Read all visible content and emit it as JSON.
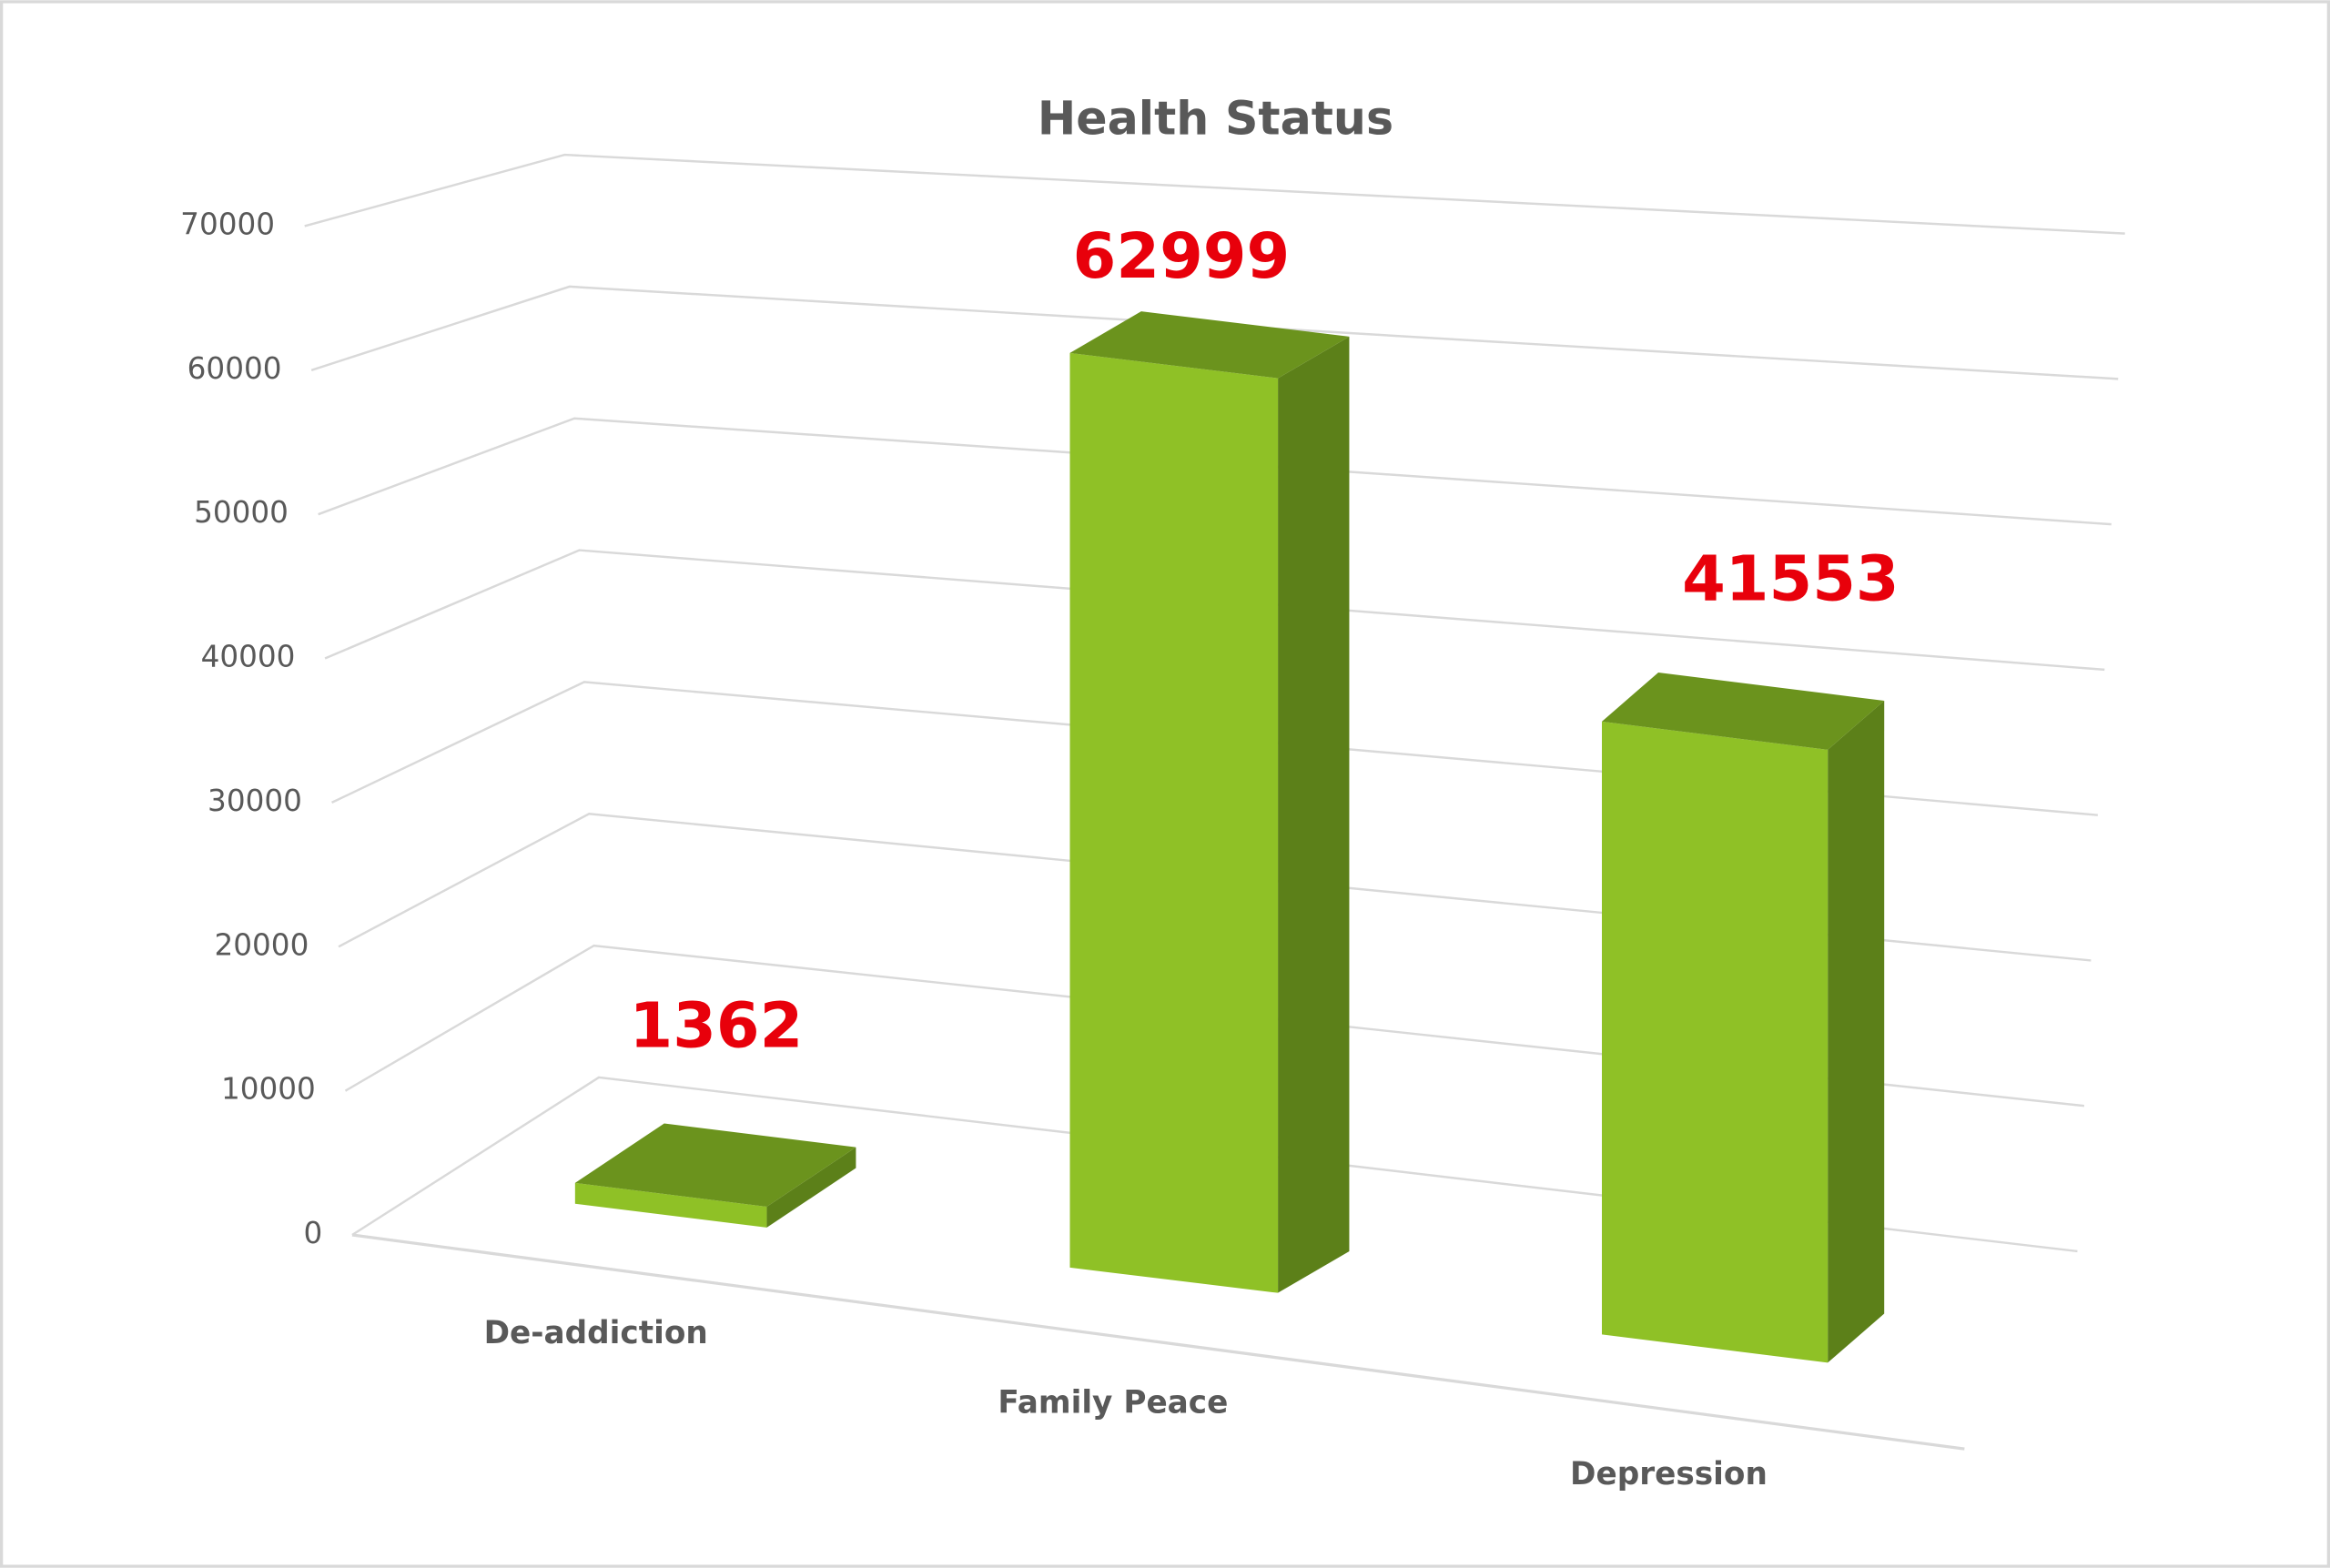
{
  "chart_data": {
    "type": "bar3d",
    "title": "Health Status",
    "categories": [
      "De-addiction",
      "Family Peace",
      "Depression"
    ],
    "values": [
      1362,
      62999,
      41553
    ],
    "color": "#8fc126",
    "top_color": "#6b931d",
    "side_color": "#5c8019",
    "label_color": "#e8000b",
    "ylim": [
      0,
      70000
    ],
    "yticks": [
      0,
      10000,
      20000,
      30000,
      40000,
      50000,
      60000,
      70000
    ],
    "grid": true
  }
}
